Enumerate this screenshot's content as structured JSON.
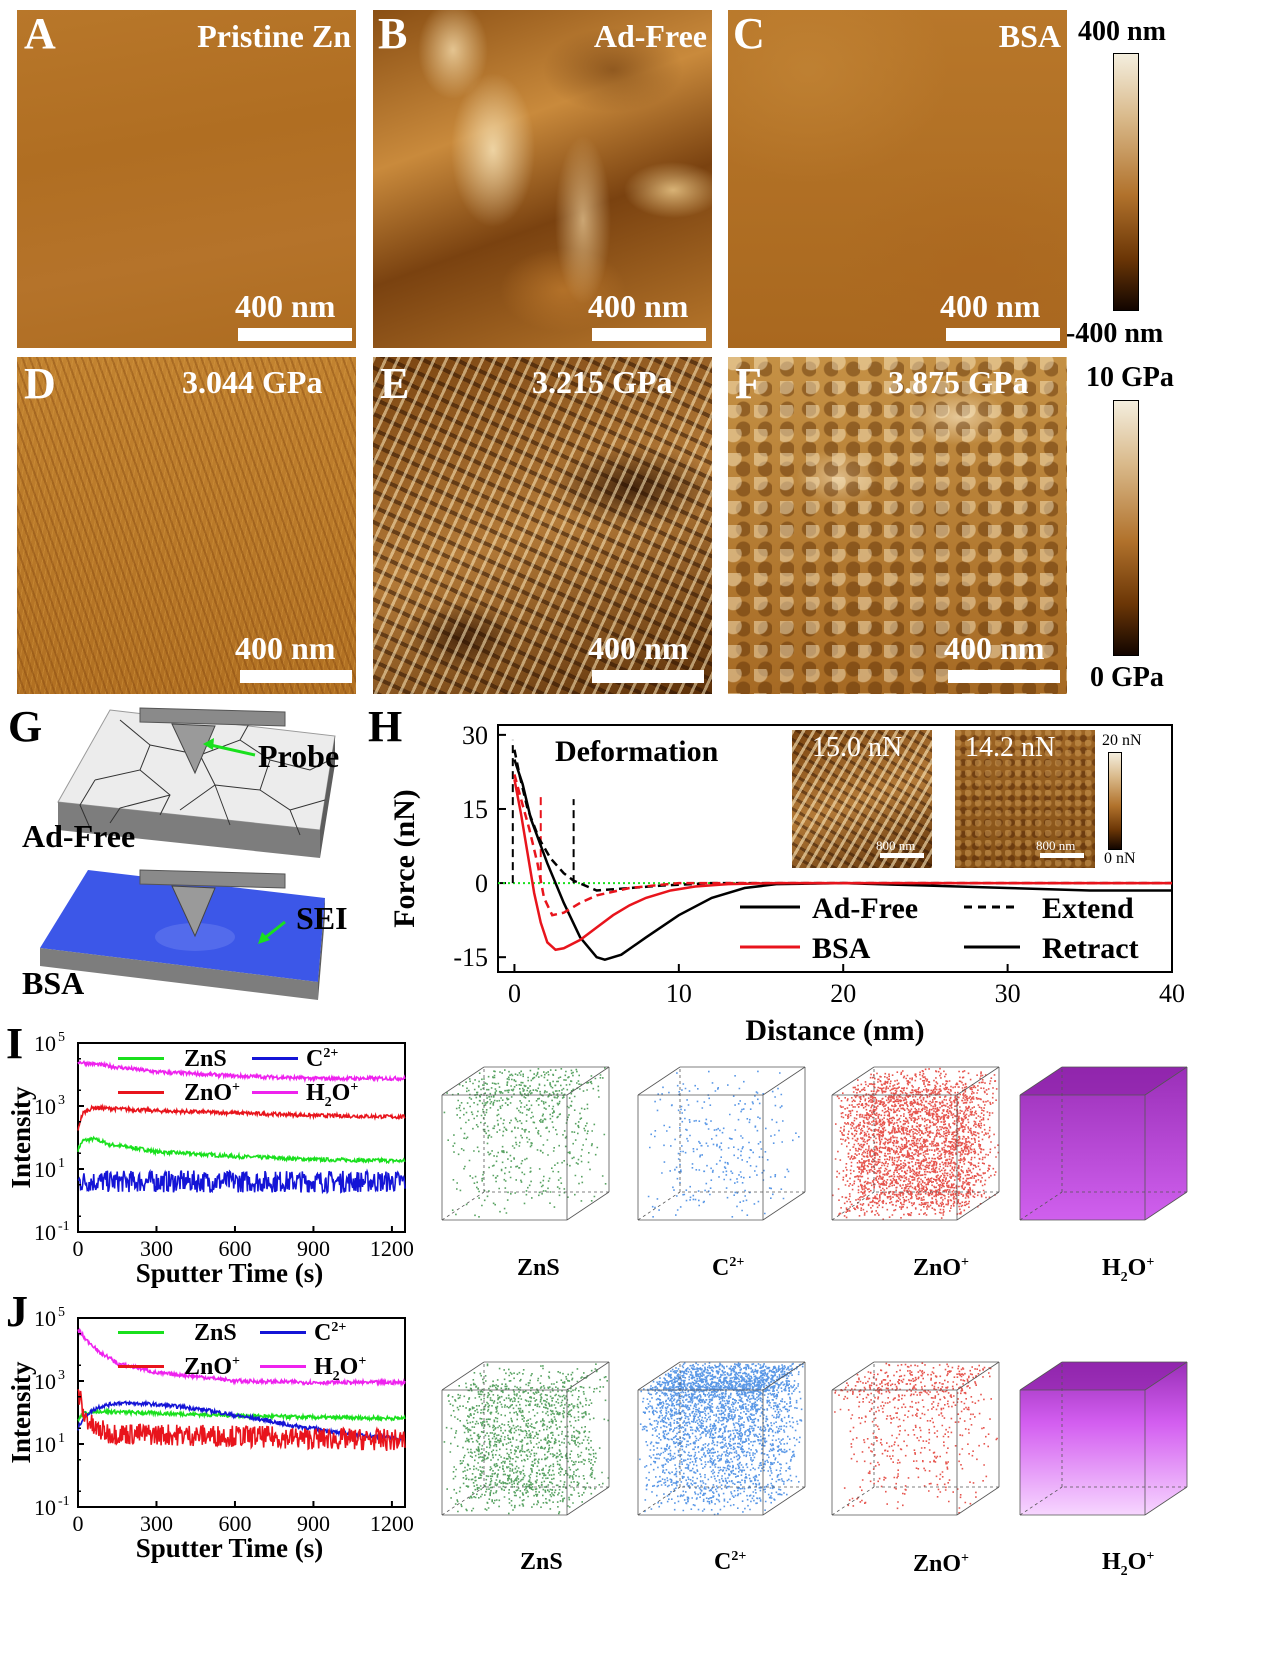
{
  "colors": {
    "afm_brown": "#b5701f",
    "red": "#e8141c",
    "black": "#000000",
    "green": "#19e01d",
    "blue": "#1414d6",
    "magenta": "#ee22ee",
    "sei_blue": "#3c57e8",
    "zns_cube": "#2e8b3b",
    "c_cube": "#2f7de0",
    "zno_cube": "#e02a22",
    "h2o_cube": "#b13fd0"
  },
  "afm_height": {
    "colorbar": {
      "max_label": "400 nm",
      "min_label": "-400 nm"
    },
    "panels": [
      {
        "label": "A",
        "title": "Pristine Zn",
        "scalebar": "400 nm"
      },
      {
        "label": "B",
        "title": "Ad-Free",
        "scalebar": "400 nm"
      },
      {
        "label": "C",
        "title": "BSA",
        "scalebar": "400 nm"
      }
    ]
  },
  "afm_modulus": {
    "colorbar": {
      "max_label": "10 GPa",
      "min_label": "0 GPa"
    },
    "panels": [
      {
        "label": "D",
        "title": "3.044 GPa",
        "scalebar": "400 nm"
      },
      {
        "label": "E",
        "title": "3.215 GPa",
        "scalebar": "400 nm"
      },
      {
        "label": "F",
        "title": "3.875 GPa",
        "scalebar": "400 nm"
      }
    ]
  },
  "schematic_g": {
    "label": "G",
    "probe_label": "Probe",
    "top_label": "Ad-Free",
    "sei_label": "SEI",
    "bottom_label": "BSA"
  },
  "force_h": {
    "label": "H",
    "annotation": "Deformation",
    "inset1": {
      "value": "15.0 nN",
      "scalebar": "800 nm"
    },
    "inset2": {
      "value": "14.2 nN",
      "scalebar": "800 nm"
    },
    "inset_colorbar": {
      "max_label": "20 nN",
      "min_label": "0 nN"
    },
    "legend": {
      "adfree": "Ad-Free",
      "bsa": "BSA",
      "extend": "Extend",
      "retract": "Retract"
    }
  },
  "tof_i": {
    "label": "I",
    "legend": {
      "zns": "ZnS",
      "c": "C",
      "c_sup": "2+",
      "zno": "ZnO",
      "zno_sup": "+",
      "h2o": "H",
      "h2o_sub": "2",
      "h2o_mid": "O",
      "h2o_sup": "+"
    },
    "cubes": {
      "zns": "ZnS",
      "c": "C",
      "c_sup": "2+",
      "zno": "ZnO",
      "zno_sup": "+",
      "h2o": "H",
      "h2o_sub": "2",
      "h2o_mid": "O",
      "h2o_sup": "+"
    }
  },
  "tof_j": {
    "label": "J",
    "legend": {
      "zns": "ZnS",
      "c": "C",
      "c_sup": "2+",
      "zno": "ZnO",
      "zno_sup": "+",
      "h2o": "H",
      "h2o_sub": "2",
      "h2o_mid": "O",
      "h2o_sup": "+"
    },
    "cubes": {
      "zns": "ZnS",
      "c": "C",
      "c_sup": "2+",
      "zno": "ZnO",
      "zno_sup": "+",
      "h2o": "H",
      "h2o_sub": "2",
      "h2o_mid": "O",
      "h2o_sup": "+"
    }
  },
  "chart_data": [
    {
      "type": "line",
      "panel": "H",
      "xlabel": "Distance (nm)",
      "ylabel": "Force (nN)",
      "xlim": [
        -1,
        40
      ],
      "ylim": [
        -18,
        32
      ],
      "xticks": [
        0,
        10,
        20,
        30,
        40
      ],
      "yticks": [
        -15,
        0,
        15,
        30
      ],
      "legend_position": "bottom-right",
      "series": [
        {
          "name": "Ad-Free Extend",
          "style": "dashed",
          "color": "#000000",
          "x": [
            0,
            0.3,
            0.8,
            1.5,
            2.2,
            3.0,
            3.6,
            5,
            7,
            9,
            12,
            16,
            40
          ],
          "y": [
            27,
            22,
            15,
            9,
            5,
            2,
            0.5,
            -1.5,
            -1,
            -0.5,
            0,
            0,
            0
          ]
        },
        {
          "name": "Ad-Free Retract",
          "style": "solid",
          "color": "#000000",
          "x": [
            0,
            0.5,
            1,
            2,
            3,
            4,
            5,
            5.5,
            6.5,
            8,
            10,
            12,
            14,
            16,
            20,
            25,
            30,
            35,
            40
          ],
          "y": [
            25,
            20,
            13,
            4,
            -4,
            -11,
            -15,
            -15.5,
            -14.5,
            -11,
            -6.5,
            -3,
            -1,
            -0.2,
            0,
            -0.5,
            -1,
            -1.5,
            -1.5
          ]
        },
        {
          "name": "BSA Extend",
          "style": "dashed",
          "color": "#e8141c",
          "x": [
            0,
            0.4,
            0.9,
            1.4,
            1.8,
            2.3,
            3,
            4,
            5,
            7,
            10,
            40
          ],
          "y": [
            22,
            17,
            11,
            4,
            -3,
            -6.5,
            -6,
            -4,
            -2.5,
            -1,
            0,
            0
          ]
        },
        {
          "name": "BSA Retract",
          "style": "solid",
          "color": "#e8141c",
          "x": [
            0,
            0.4,
            0.8,
            1.2,
            1.6,
            2,
            2.5,
            3,
            4,
            5,
            6,
            7,
            8,
            9.5,
            11,
            13,
            16,
            40
          ],
          "y": [
            21,
            14,
            6,
            -2,
            -8,
            -12,
            -13.5,
            -13.2,
            -11.5,
            -9,
            -6.5,
            -4.5,
            -3,
            -1.5,
            -0.7,
            -0.2,
            0,
            0
          ]
        }
      ],
      "vlines": [
        {
          "x": -0.1,
          "y": [
            0,
            29
          ],
          "color": "#000000"
        },
        {
          "x": 1.6,
          "y": [
            0,
            18
          ],
          "color": "#e8141c"
        },
        {
          "x": 3.6,
          "y": [
            0,
            17
          ],
          "color": "#000000"
        }
      ],
      "zero_line": {
        "y": 0,
        "color": "#19e01d",
        "style": "dotted"
      }
    },
    {
      "type": "line",
      "panel": "I",
      "xlabel": "Sputter Time (s)",
      "ylabel": "Intensity",
      "scale": "log",
      "xlim": [
        0,
        1250
      ],
      "ylim_exp": [
        -1,
        5
      ],
      "xticks": [
        0,
        300,
        600,
        900,
        1200
      ],
      "ytick_exps": [
        -1,
        1,
        3,
        5
      ],
      "series": [
        {
          "name": "ZnS",
          "color": "#19e01d",
          "x": [
            0,
            20,
            60,
            120,
            300,
            600,
            900,
            1250
          ],
          "y": [
            40,
            80,
            90,
            60,
            35,
            25,
            20,
            18
          ]
        },
        {
          "name": "C2+",
          "color": "#1414d6",
          "x": [
            0,
            100,
            300,
            600,
            900,
            1250
          ],
          "y": [
            4,
            4,
            4,
            4,
            4,
            4
          ],
          "noise": true
        },
        {
          "name": "ZnO+",
          "color": "#e8141c",
          "x": [
            0,
            20,
            60,
            100,
            300,
            600,
            900,
            1250
          ],
          "y": [
            150,
            600,
            900,
            850,
            700,
            600,
            500,
            450
          ]
        },
        {
          "name": "H2O+",
          "color": "#ee22ee",
          "x": [
            0,
            50,
            150,
            300,
            600,
            900,
            1250
          ],
          "y": [
            25000,
            22000,
            17000,
            12000,
            9000,
            7500,
            7500
          ]
        }
      ]
    },
    {
      "type": "line",
      "panel": "J",
      "xlabel": "Sputter Time (s)",
      "ylabel": "Intensity",
      "scale": "log",
      "xlim": [
        0,
        1250
      ],
      "ylim_exp": [
        -1,
        5
      ],
      "xticks": [
        0,
        300,
        600,
        900,
        1200
      ],
      "ytick_exps": [
        -1,
        1,
        3,
        5
      ],
      "series": [
        {
          "name": "ZnS",
          "color": "#19e01d",
          "x": [
            0,
            30,
            80,
            200,
            400,
            600,
            900,
            1250
          ],
          "y": [
            60,
            100,
            110,
            100,
            90,
            80,
            70,
            65
          ]
        },
        {
          "name": "C2+",
          "color": "#1414d6",
          "x": [
            0,
            30,
            80,
            150,
            250,
            400,
            600,
            800,
            1000,
            1250
          ],
          "y": [
            30,
            80,
            150,
            200,
            190,
            150,
            80,
            40,
            22,
            14
          ]
        },
        {
          "name": "ZnO+",
          "color": "#e8141c",
          "x": [
            0,
            20,
            60,
            120,
            300,
            600,
            900,
            1250
          ],
          "y": [
            400,
            80,
            30,
            22,
            20,
            18,
            15,
            13
          ],
          "noise": true
        },
        {
          "name": "H2O+",
          "color": "#ee22ee",
          "x": [
            0,
            30,
            80,
            150,
            300,
            600,
            900,
            1250
          ],
          "y": [
            40000,
            20000,
            8000,
            3500,
            1800,
            1000,
            900,
            900
          ]
        }
      ]
    }
  ]
}
